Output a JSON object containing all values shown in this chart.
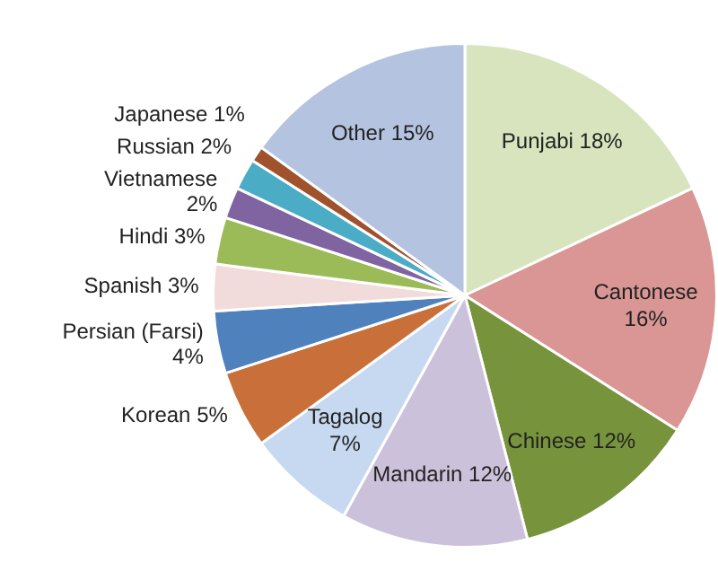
{
  "chart_data": {
    "type": "pie",
    "categories": [
      "Punjabi",
      "Cantonese",
      "Chinese",
      "Mandarin",
      "Tagalog",
      "Korean",
      "Persian (Farsi)",
      "Spanish",
      "Hindi",
      "Vietnamese",
      "Russian",
      "Japanese",
      "Other"
    ],
    "values": [
      18,
      16,
      12,
      12,
      7,
      5,
      4,
      3,
      3,
      2,
      2,
      1,
      15
    ],
    "value_labels": [
      "18%",
      "16%",
      "12%",
      "12%",
      "7%",
      "5%",
      "4%",
      "3%",
      "3%",
      "2%",
      "2%",
      "1%",
      "15%"
    ],
    "colors": [
      "#d7e4bd",
      "#d99694",
      "#77933c",
      "#ccc1da",
      "#c6d9f1",
      "#c9703a",
      "#4f81bd",
      "#f2dcdb",
      "#9bbb59",
      "#8064a2",
      "#4bacc6",
      "#a0522d",
      "#b4c3e0"
    ],
    "legend": false
  }
}
